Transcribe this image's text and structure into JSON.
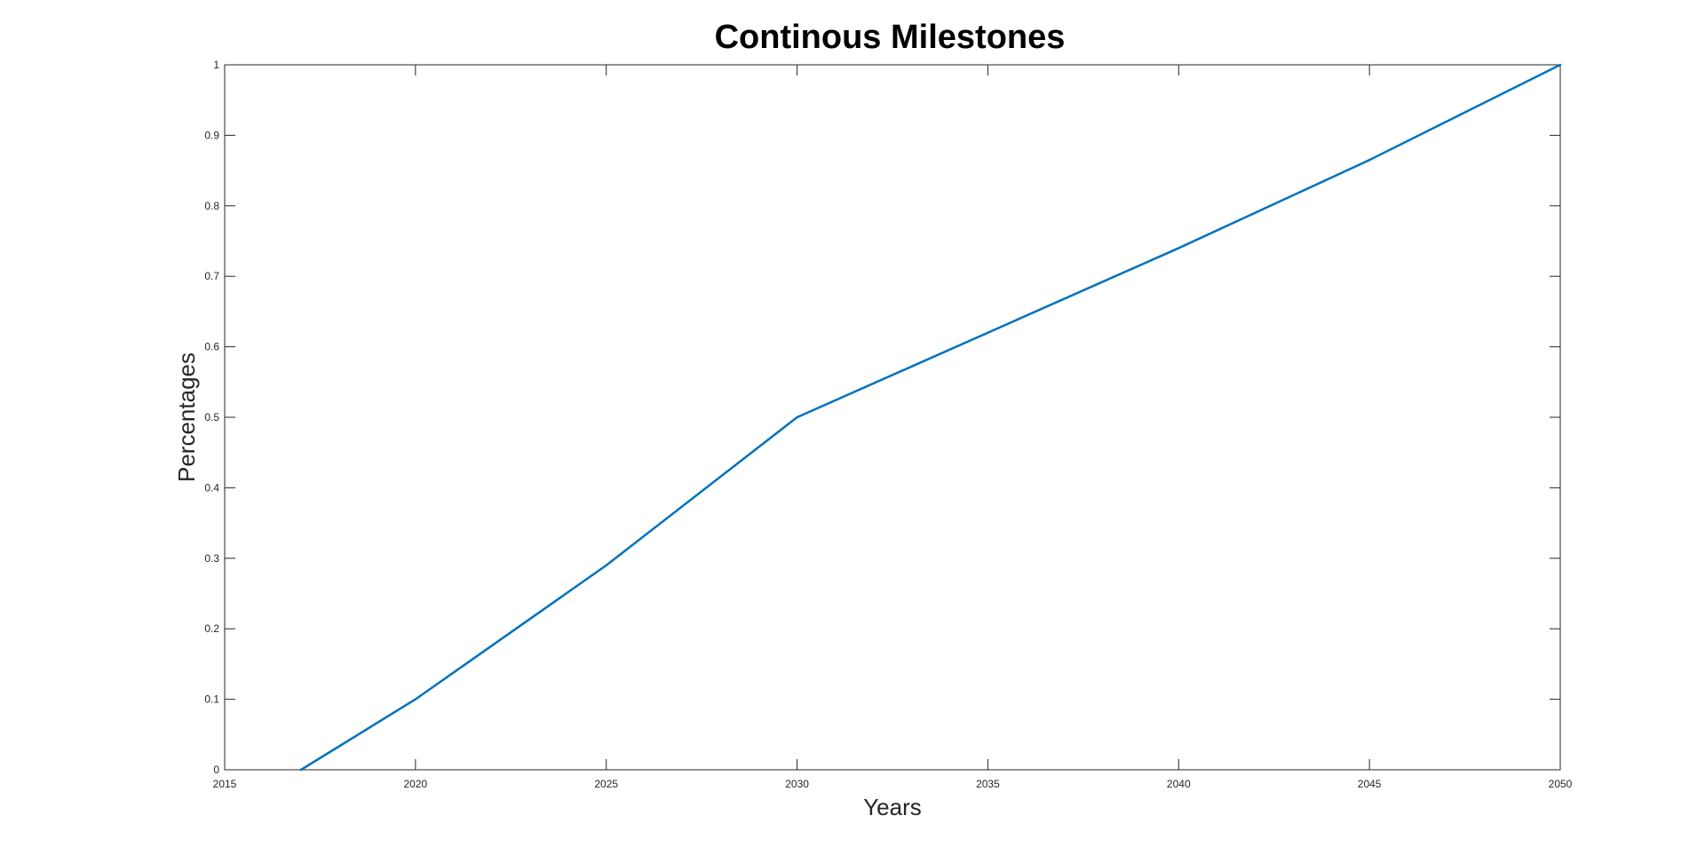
{
  "chart_data": {
    "type": "line",
    "title": "Continous Milestones",
    "xlabel": "Years",
    "ylabel": "Percentages",
    "xlim": [
      2015,
      2050
    ],
    "ylim": [
      0,
      1
    ],
    "x_ticks": [
      2015,
      2020,
      2025,
      2030,
      2035,
      2040,
      2045,
      2050
    ],
    "y_ticks": [
      0,
      0.1,
      0.2,
      0.3,
      0.4,
      0.5,
      0.6,
      0.7,
      0.8,
      0.9,
      1
    ],
    "x_tick_labels": [
      "2015",
      "2020",
      "2025",
      "2030",
      "2035",
      "2040",
      "2045",
      "2050"
    ],
    "y_tick_labels": [
      "0",
      "0.1",
      "0.2",
      "0.3",
      "0.4",
      "0.5",
      "0.6",
      "0.7",
      "0.8",
      "0.9",
      "1"
    ],
    "grid": false,
    "legend": "none",
    "series": [
      {
        "color": "#0072BD",
        "x": [
          2017,
          2020,
          2025,
          2030,
          2035,
          2040,
          2045,
          2050
        ],
        "y": [
          0,
          0.1,
          0.29,
          0.5,
          0.62,
          0.74,
          0.865,
          1
        ]
      }
    ]
  }
}
